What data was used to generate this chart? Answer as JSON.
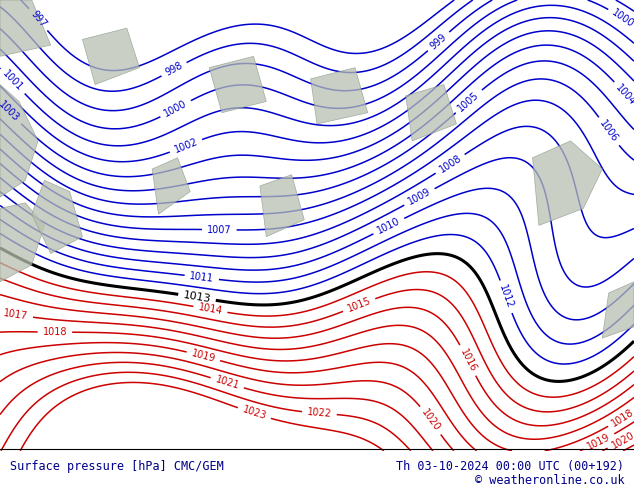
{
  "title_left": "Surface pressure [hPa] CMC/GEM",
  "title_right": "Th 03-10-2024 00:00 UTC (00+192)",
  "copyright": "© weatheronline.co.uk",
  "bg_color": "#b8e0a0",
  "bottom_bar_color": "#ffffff",
  "footer_color": "#00008b",
  "fig_width": 6.34,
  "fig_height": 4.9,
  "dpi": 100,
  "blue_contour_color": "#0000cc",
  "red_contour_color": "#cc0000",
  "black_contour_color": "#000000"
}
